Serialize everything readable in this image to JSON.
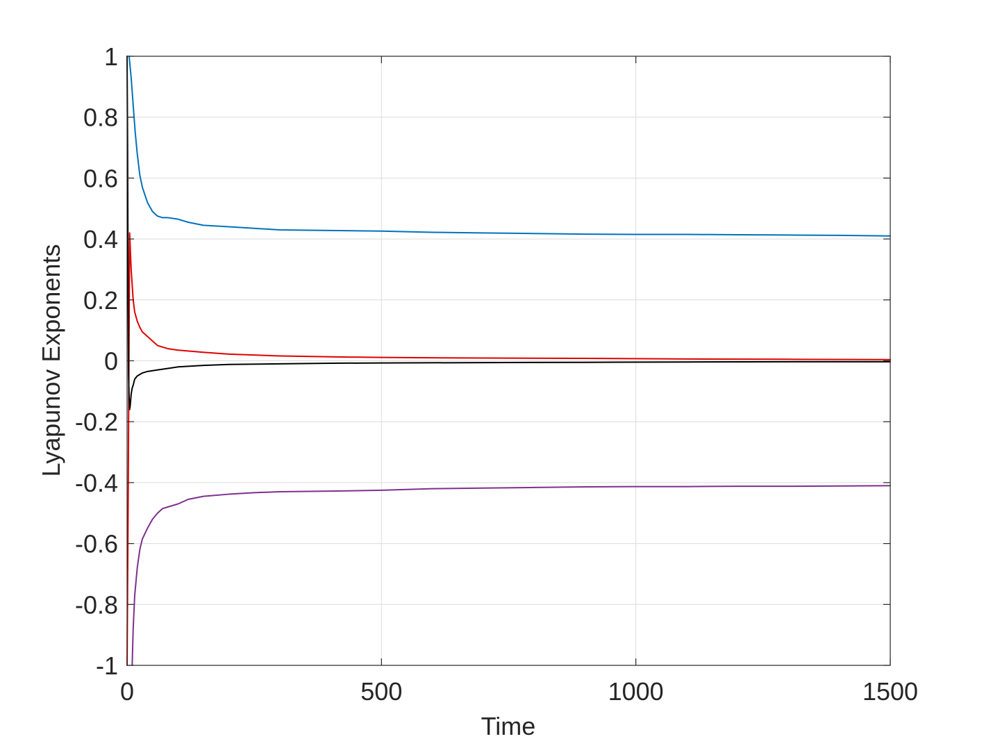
{
  "chart_data": {
    "type": "line",
    "title": "",
    "xlabel": "Time",
    "ylabel": "Lyapunov Exponents",
    "xlim": [
      0,
      1500
    ],
    "ylim": [
      -1,
      1
    ],
    "xticks": [
      0,
      500,
      1000,
      1500
    ],
    "xtick_labels": [
      "0",
      "500",
      "1000",
      "1500"
    ],
    "yticks": [
      1,
      0.8,
      0.6,
      0.4,
      0.2,
      0,
      -0.2,
      -0.4,
      -0.6,
      -0.8,
      -1
    ],
    "ytick_labels": [
      "1",
      "0.8",
      "0.6",
      "0.4",
      "0.2",
      "0",
      "-0.2",
      "-0.4",
      "-0.6",
      "-0.8",
      "-1"
    ],
    "grid": true,
    "legend": "none",
    "series": [
      {
        "color": "#0072BD",
        "x": [
          4,
          8,
          12,
          16,
          20,
          25,
          30,
          40,
          50,
          60,
          70,
          80,
          100,
          120,
          150,
          200,
          250,
          300,
          400,
          500,
          600,
          700,
          800,
          900,
          1000,
          1100,
          1200,
          1300,
          1400,
          1500
        ],
        "y": [
          1.0,
          0.93,
          0.84,
          0.75,
          0.68,
          0.61,
          0.57,
          0.52,
          0.49,
          0.475,
          0.47,
          0.47,
          0.465,
          0.455,
          0.445,
          0.44,
          0.435,
          0.43,
          0.428,
          0.426,
          0.422,
          0.42,
          0.418,
          0.416,
          0.415,
          0.415,
          0.414,
          0.413,
          0.412,
          0.41
        ]
      },
      {
        "color": "#E00000",
        "x": [
          0,
          2,
          4,
          5,
          6,
          8,
          10,
          12,
          15,
          20,
          25,
          30,
          40,
          50,
          60,
          80,
          100,
          150,
          200,
          300,
          400,
          500,
          700,
          900,
          1100,
          1300,
          1500
        ],
        "y": [
          -1.0,
          -0.5,
          0.1,
          0.42,
          0.38,
          0.3,
          0.25,
          0.2,
          0.16,
          0.13,
          0.11,
          0.095,
          0.08,
          0.065,
          0.05,
          0.04,
          0.035,
          0.028,
          0.022,
          0.016,
          0.013,
          0.011,
          0.009,
          0.008,
          0.006,
          0.005,
          0.004
        ]
      },
      {
        "color": "#000000",
        "x": [
          0,
          1,
          2,
          3,
          4,
          5,
          6,
          8,
          10,
          12,
          15,
          20,
          30,
          40,
          60,
          80,
          100,
          150,
          200,
          300,
          400,
          500,
          700,
          900,
          1100,
          1300,
          1500
        ],
        "y": [
          1.0,
          0.7,
          0.2,
          -0.05,
          -0.12,
          -0.16,
          -0.15,
          -0.11,
          -0.09,
          -0.08,
          -0.06,
          -0.05,
          -0.04,
          -0.035,
          -0.03,
          -0.025,
          -0.02,
          -0.015,
          -0.012,
          -0.01,
          -0.008,
          -0.007,
          -0.006,
          -0.005,
          -0.004,
          -0.003,
          -0.003
        ]
      },
      {
        "color": "#7E2F8E",
        "x": [
          10,
          12,
          15,
          20,
          25,
          30,
          40,
          50,
          60,
          70,
          80,
          100,
          120,
          150,
          200,
          250,
          300,
          400,
          500,
          600,
          700,
          800,
          900,
          1000,
          1100,
          1200,
          1300,
          1400,
          1500
        ],
        "y": [
          -1.0,
          -0.88,
          -0.77,
          -0.68,
          -0.62,
          -0.585,
          -0.55,
          -0.52,
          -0.5,
          -0.485,
          -0.48,
          -0.47,
          -0.455,
          -0.445,
          -0.438,
          -0.433,
          -0.43,
          -0.428,
          -0.425,
          -0.42,
          -0.418,
          -0.416,
          -0.414,
          -0.413,
          -0.413,
          -0.412,
          -0.412,
          -0.411,
          -0.41
        ]
      }
    ]
  }
}
